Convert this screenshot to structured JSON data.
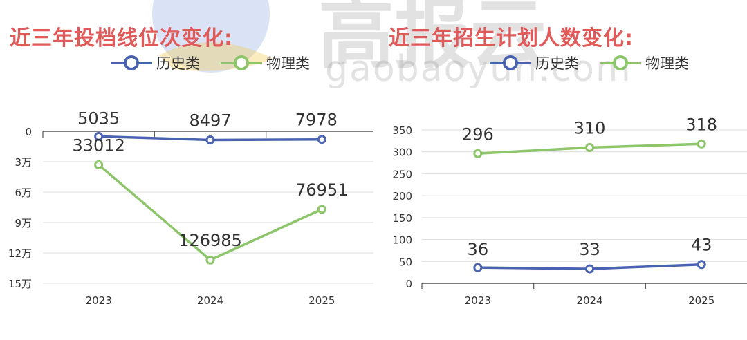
{
  "watermark": {
    "brand_cn": "高报云",
    "brand_url": "gaobaoyun.com"
  },
  "colors": {
    "history": "#4a63b0",
    "physics": "#8cc56a",
    "title": "#e05a5a",
    "axis": "#555555",
    "grid": "#dcdcdc"
  },
  "legend": {
    "history": "历史类",
    "physics": "物理类"
  },
  "chart_data": [
    {
      "type": "line",
      "title": "近三年投档线位次变化:",
      "categories": [
        "2023",
        "2024",
        "2025"
      ],
      "y_inverted": true,
      "ylim": [
        0,
        150000
      ],
      "yticks": [
        0,
        30000,
        60000,
        90000,
        120000,
        150000
      ],
      "ytick_labels": [
        "0",
        "3万",
        "6万",
        "9万",
        "12万",
        "15万"
      ],
      "grid": true,
      "legend_position": "top",
      "series": [
        {
          "name": "历史类",
          "values": [
            5035,
            8497,
            7978
          ],
          "labels": [
            "5035",
            "8497",
            "7978"
          ]
        },
        {
          "name": "物理类",
          "values": [
            33012,
            126985,
            76951
          ],
          "labels": [
            "33012",
            "126985",
            "76951"
          ]
        }
      ]
    },
    {
      "type": "line",
      "title": "近三年招生计划人数变化:",
      "categories": [
        "2023",
        "2024",
        "2025"
      ],
      "ylim": [
        0,
        350
      ],
      "yticks": [
        0,
        50,
        100,
        150,
        200,
        250,
        300,
        350
      ],
      "ytick_labels": [
        "0",
        "50",
        "100",
        "150",
        "200",
        "250",
        "300",
        "350"
      ],
      "grid": true,
      "legend_position": "top",
      "series": [
        {
          "name": "历史类",
          "values": [
            36,
            33,
            43
          ],
          "labels": [
            "36",
            "33",
            "43"
          ]
        },
        {
          "name": "物理类",
          "values": [
            296,
            310,
            318
          ],
          "labels": [
            "296",
            "310",
            "318"
          ]
        }
      ]
    }
  ]
}
